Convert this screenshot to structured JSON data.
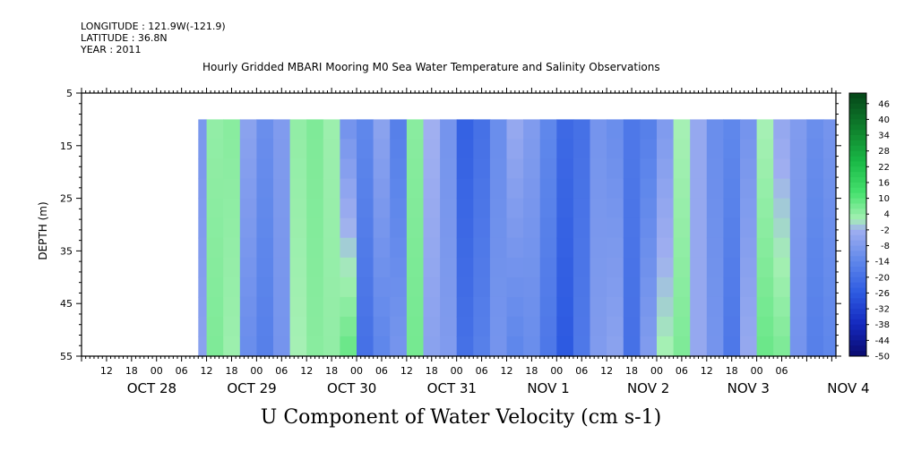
{
  "header": {
    "longitude": "LONGITUDE : 121.9W(-121.9)",
    "latitude": "LATITUDE : 36.8N",
    "year": "YEAR : 2011"
  },
  "chart_data": {
    "type": "heatmap",
    "title": "Hourly Gridded MBARI Mooring M0 Sea Water Temperature and Salinity Observations",
    "xlabel": "U Component of Water Velocity (cm s-1)",
    "ylabel": "DEPTH (m)",
    "ylim": [
      5,
      55
    ],
    "y_inverted": true,
    "y_ticks": [
      5,
      15,
      25,
      35,
      45,
      55
    ],
    "data_depth_range": [
      10,
      55
    ],
    "x_hour_ticks": [
      "12",
      "18",
      "00",
      "06",
      "12",
      "18",
      "00",
      "06",
      "12",
      "18",
      "00",
      "06",
      "12",
      "18",
      "00",
      "06",
      "12",
      "18",
      "00",
      "06",
      "12",
      "18",
      "00",
      "06",
      "12",
      "18",
      "00",
      "06"
    ],
    "x_day_labels": [
      "OCT 28",
      "OCT 29",
      "OCT 30",
      "OCT 31",
      "NOV  1",
      "NOV  2",
      "NOV  3",
      "NOV  4"
    ],
    "x_range_hours": [
      -18,
      163
    ],
    "data_start_hour": 10,
    "colorbar": {
      "labels": [
        "46",
        "40",
        "34",
        "28",
        "22",
        "16",
        "10",
        "4",
        "-2",
        "-8",
        "-14",
        "-20",
        "-26",
        "-32",
        "-38",
        "-44",
        "-50"
      ],
      "min": -50,
      "max": 50
    },
    "columns": [
      {
        "hour": 10,
        "top": -9,
        "bottom": -6
      },
      {
        "hour": 12,
        "top": 4,
        "bottom": 6
      },
      {
        "hour": 16,
        "top": 5,
        "bottom": 3
      },
      {
        "hour": 20,
        "top": -6,
        "bottom": -12
      },
      {
        "hour": 24,
        "top": -12,
        "bottom": -16
      },
      {
        "hour": 28,
        "top": -8,
        "bottom": -10
      },
      {
        "hour": 32,
        "top": 4,
        "bottom": 2
      },
      {
        "hour": 36,
        "top": 6,
        "bottom": 5
      },
      {
        "hour": 40,
        "top": 3,
        "bottom": 4
      },
      {
        "hour": 44,
        "top": -10,
        "bottom": 8
      },
      {
        "hour": 48,
        "top": -14,
        "bottom": -20
      },
      {
        "hour": 52,
        "top": -6,
        "bottom": -14
      },
      {
        "hour": 56,
        "top": -16,
        "bottom": -10
      },
      {
        "hour": 60,
        "top": 5,
        "bottom": 7
      },
      {
        "hour": 64,
        "top": -2,
        "bottom": -6
      },
      {
        "hour": 68,
        "top": -10,
        "bottom": -8
      },
      {
        "hour": 72,
        "top": -24,
        "bottom": -20
      },
      {
        "hour": 76,
        "top": -20,
        "bottom": -16
      },
      {
        "hour": 80,
        "top": -12,
        "bottom": -10
      },
      {
        "hour": 84,
        "top": -4,
        "bottom": -14
      },
      {
        "hour": 88,
        "top": -8,
        "bottom": -12
      },
      {
        "hour": 92,
        "top": -14,
        "bottom": -18
      },
      {
        "hour": 96,
        "top": -22,
        "bottom": -26
      },
      {
        "hour": 100,
        "top": -20,
        "bottom": -18
      },
      {
        "hour": 104,
        "top": -10,
        "bottom": -8
      },
      {
        "hour": 108,
        "top": -12,
        "bottom": -6
      },
      {
        "hour": 112,
        "top": -18,
        "bottom": -20
      },
      {
        "hour": 116,
        "top": -16,
        "bottom": -8
      },
      {
        "hour": 120,
        "top": -8,
        "bottom": 2
      },
      {
        "hour": 124,
        "top": 2,
        "bottom": 6
      },
      {
        "hour": 128,
        "top": -4,
        "bottom": -4
      },
      {
        "hour": 132,
        "top": -12,
        "bottom": -10
      },
      {
        "hour": 136,
        "top": -14,
        "bottom": -18
      },
      {
        "hour": 140,
        "top": -10,
        "bottom": -4
      },
      {
        "hour": 144,
        "top": 2,
        "bottom": 8
      },
      {
        "hour": 148,
        "top": -4,
        "bottom": 6
      },
      {
        "hour": 152,
        "top": -8,
        "bottom": -10
      },
      {
        "hour": 156,
        "top": -12,
        "bottom": -16
      },
      {
        "hour": 160,
        "top": -10,
        "bottom": -14
      }
    ]
  }
}
